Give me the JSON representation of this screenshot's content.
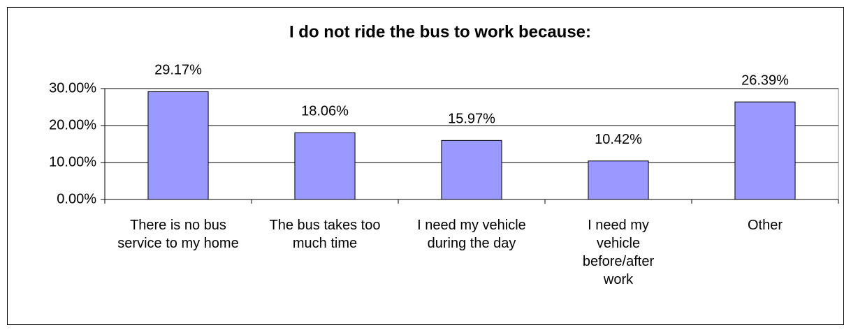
{
  "chart_data": {
    "type": "bar",
    "title": "I do not ride the bus to work because:",
    "categories": [
      "There is no bus service to my home",
      "The bus takes too much time",
      "I need my vehicle during the day",
      "I need my vehicle before/after work",
      "Other"
    ],
    "values": [
      29.17,
      18.06,
      15.97,
      10.42,
      26.39
    ],
    "value_labels": [
      "29.17%",
      "18.06%",
      "15.97%",
      "10.42%",
      "26.39%"
    ],
    "color": "#9999ff",
    "ylim": [
      0,
      30
    ],
    "yticks": [
      {
        "value": 0,
        "label": "0.00%"
      },
      {
        "value": 10,
        "label": "10.00%"
      },
      {
        "value": 20,
        "label": "20.00%"
      },
      {
        "value": 30,
        "label": "30.00%"
      }
    ],
    "grid": true
  }
}
